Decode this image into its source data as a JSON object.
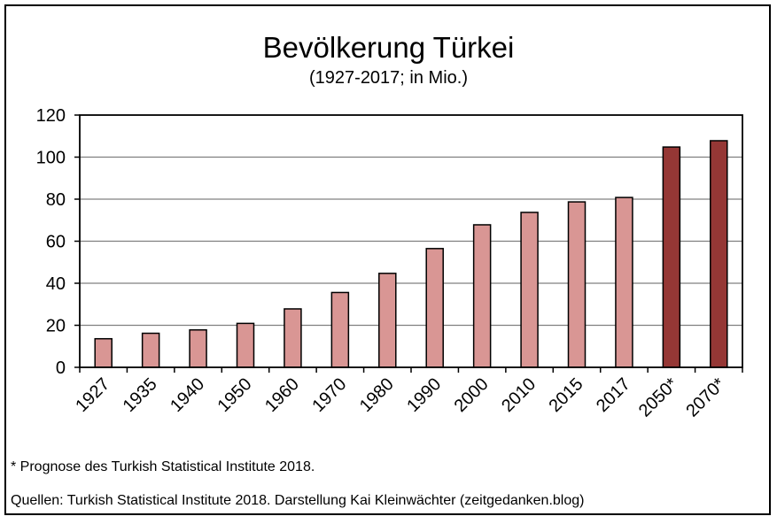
{
  "chart_data": {
    "type": "bar",
    "title": "Bevölkerung Türkei",
    "subtitle": "(1927-2017; in Mio.)",
    "categories": [
      "1927",
      "1935",
      "1940",
      "1950",
      "1960",
      "1970",
      "1980",
      "1990",
      "2000",
      "2010",
      "2015",
      "2017",
      "2050*",
      "2070*"
    ],
    "values": [
      13.6,
      16.2,
      17.8,
      20.9,
      27.8,
      35.6,
      44.7,
      56.5,
      67.8,
      73.7,
      78.7,
      80.8,
      104.8,
      107.8
    ],
    "ylim": [
      0,
      120
    ],
    "yticks": [
      0,
      20,
      40,
      60,
      80,
      100,
      120
    ],
    "grid": true,
    "colors": {
      "historical": "#d99694",
      "forecast": "#953735",
      "edge": "#000000",
      "grid": "#808080"
    },
    "forecast_categories": [
      "2050*",
      "2070*"
    ]
  },
  "footnotes": {
    "forecast_note": "* Prognose des Turkish Statistical Institute 2018.",
    "sources": "Quellen: Turkish Statistical Institute 2018. Darstellung Kai Kleinwächter (zeitgedanken.blog)"
  }
}
